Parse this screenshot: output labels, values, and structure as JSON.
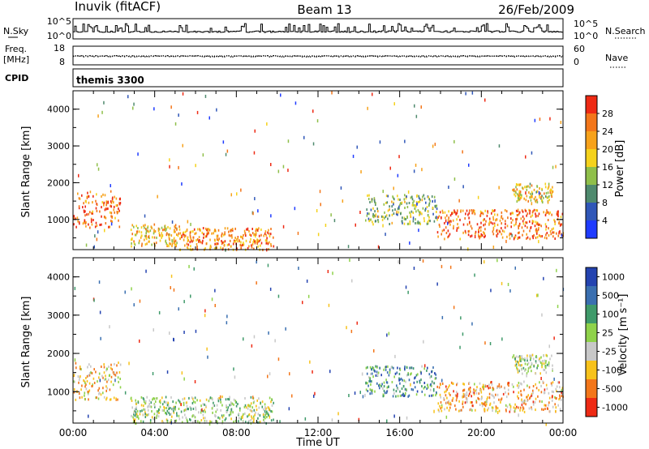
{
  "header": {
    "station": "Inuvik (fitACF)",
    "beam": "Beam 13",
    "date": "26/Feb/2009"
  },
  "top_panels": {
    "nsky_label": "N.Sky",
    "nsearch_label": "N.Search",
    "freq_label_line1": "Freq.",
    "freq_label_line2": "[MHz]",
    "nave_label": "Nave",
    "cpid_label": "CPID",
    "cpid_value": "themis 3300",
    "noise_left_ticks": [
      "10^5",
      "10^0"
    ],
    "noise_right_ticks": [
      "10^5",
      "10^0"
    ],
    "freq_left_ticks": [
      "18",
      "8"
    ],
    "freq_right_ticks": [
      "60",
      "0"
    ]
  },
  "axes": {
    "x_ticks": [
      "00:00",
      "04:00",
      "08:00",
      "12:00",
      "16:00",
      "20:00",
      "00:00"
    ],
    "x_label": "Time UT",
    "y_label": "Slant Range [km]",
    "y_ticks": [
      "1000",
      "2000",
      "3000",
      "4000"
    ]
  },
  "colorbars": {
    "power": {
      "label": "Power [dB]",
      "tick_labels": [
        "4",
        "8",
        "12",
        "16",
        "20",
        "24",
        "28"
      ],
      "colors": [
        "#1f3bff",
        "#3057b8",
        "#4f8a6e",
        "#8fbf4a",
        "#f5d21c",
        "#f7a21b",
        "#f3761a",
        "#ee2a14"
      ]
    },
    "velocity": {
      "label": "Velocity [m s⁻¹]",
      "tick_labels": [
        "1000",
        "500",
        "100",
        "25",
        "-25",
        "-100",
        "-500",
        "-1000"
      ],
      "colors": [
        "#2443b0",
        "#3a6fb0",
        "#3f9a6a",
        "#8fd24a",
        "#c8c8c8",
        "#f7c21b",
        "#f3761a",
        "#ee2a14"
      ]
    }
  },
  "chart_data": [
    {
      "type": "heatmap",
      "title": "Power",
      "xlabel": "Time UT",
      "ylabel": "Slant Range [km]",
      "xlim": [
        0,
        24
      ],
      "ylim": [
        180,
        4500
      ],
      "units": "dB",
      "echo_regions": [
        {
          "t_start": 0.0,
          "t_end": 2.3,
          "range_min": 800,
          "range_max": 1800,
          "mean_value": 26
        },
        {
          "t_start": 2.8,
          "t_end": 5.2,
          "range_min": 300,
          "range_max": 900,
          "mean_value": 20
        },
        {
          "t_start": 5.2,
          "t_end": 9.8,
          "range_min": 200,
          "range_max": 800,
          "mean_value": 24
        },
        {
          "t_start": 14.3,
          "t_end": 17.8,
          "range_min": 900,
          "range_max": 1700,
          "mean_value": 14
        },
        {
          "t_start": 17.8,
          "t_end": 24.0,
          "range_min": 500,
          "range_max": 1300,
          "mean_value": 26
        },
        {
          "t_start": 21.5,
          "t_end": 23.5,
          "range_min": 1500,
          "range_max": 2000,
          "mean_value": 18
        }
      ]
    },
    {
      "type": "heatmap",
      "title": "Velocity",
      "xlabel": "Time UT",
      "ylabel": "Slant Range [km]",
      "xlim": [
        0,
        24
      ],
      "ylim": [
        180,
        4500
      ],
      "units": "m s-1",
      "echo_regions": [
        {
          "t_start": 0.0,
          "t_end": 2.3,
          "range_min": 800,
          "range_max": 1800,
          "mean_value": -300
        },
        {
          "t_start": 2.8,
          "t_end": 9.8,
          "range_min": 200,
          "range_max": 900,
          "mean_value": 30
        },
        {
          "t_start": 14.3,
          "t_end": 17.8,
          "range_min": 900,
          "range_max": 1700,
          "mean_value": 400
        },
        {
          "t_start": 17.8,
          "t_end": 24.0,
          "range_min": 500,
          "range_max": 1300,
          "mean_value": -400
        },
        {
          "t_start": 21.5,
          "t_end": 23.5,
          "range_min": 1500,
          "range_max": 2000,
          "mean_value": 0
        }
      ]
    }
  ]
}
